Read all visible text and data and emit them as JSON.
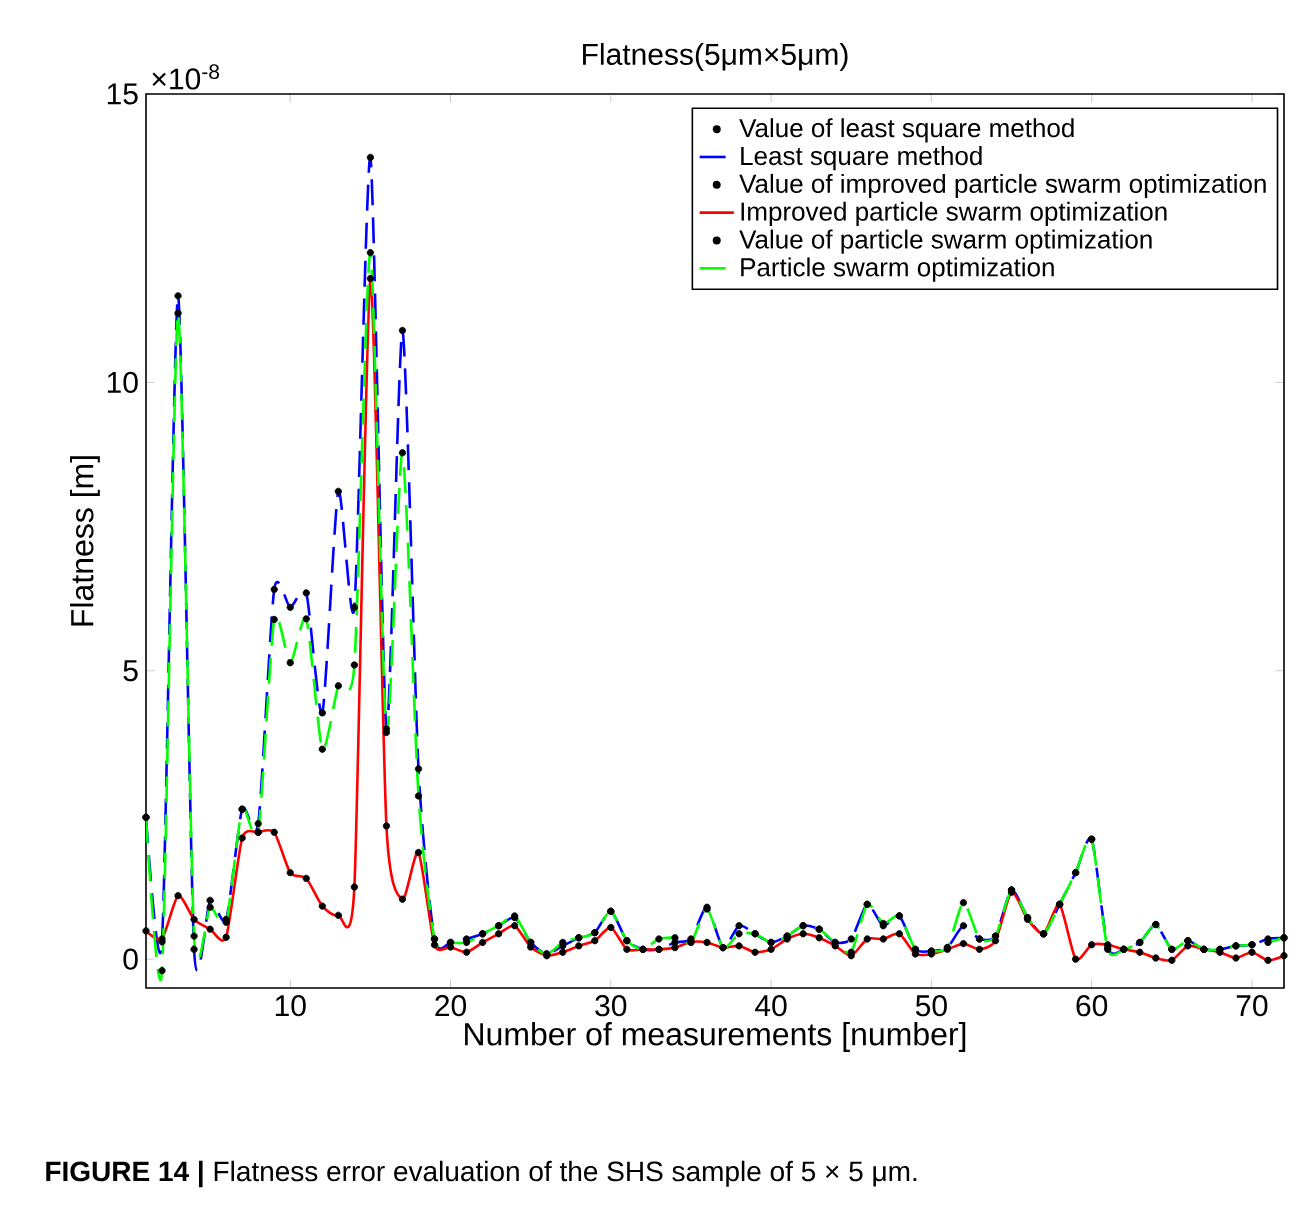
{
  "chart_data": {
    "type": "line",
    "title": "Flatness(5μm×5μm)",
    "xlabel": "Number of measurements [number]",
    "ylabel": "Flatness [m]",
    "annotations": [
      "×10$^{-8}$",
      "**FIGURE 14 |** Flatness error evaluation of the SHS sample of 5 × 5 μm."
    ],
    "x": [
      1,
      2,
      3,
      4,
      5,
      6,
      7,
      8,
      9,
      10,
      11,
      12,
      13,
      14,
      15,
      16,
      17,
      18,
      19,
      20,
      21,
      22,
      23,
      24,
      25,
      26,
      27,
      28,
      29,
      30,
      31,
      32,
      33,
      34,
      35,
      36,
      37,
      38,
      39,
      40,
      41,
      42,
      43,
      44,
      45,
      46,
      47,
      48,
      49,
      50,
      51,
      52,
      53,
      54,
      55,
      56,
      57,
      58,
      59,
      60,
      61,
      62,
      63,
      64,
      65,
      66,
      67,
      68,
      69,
      70,
      71,
      72
    ],
    "xlim": [
      1,
      72
    ],
    "ylim": [
      -0.5,
      15
    ],
    "xticks": [
      10,
      20,
      30,
      40,
      50,
      60,
      70
    ],
    "yticks": [
      0,
      5,
      10,
      15
    ],
    "legend": "top right",
    "grid": false,
    "series": [
      {
        "name": "Value of least square method",
        "type": "scatter",
        "marker": "circle",
        "color": "#000000",
        "values": [
          2.46,
          0.3,
          11.5,
          0.17,
          1.02,
          0.69,
          2.6,
          2.35,
          6.41,
          6.1,
          6.35,
          4.27,
          8.11,
          6.1,
          13.9,
          3.99,
          10.9,
          3.3,
          0.35,
          0.29,
          0.35,
          0.44,
          0.58,
          0.72,
          0.29,
          0.09,
          0.23,
          0.37,
          0.46,
          0.83,
          0.32,
          0.17,
          0.17,
          0.29,
          0.35,
          0.9,
          0.2,
          0.58,
          0.44,
          0.29,
          0.4,
          0.58,
          0.52,
          0.29,
          0.35,
          0.95,
          0.58,
          0.75,
          0.17,
          0.14,
          0.2,
          0.58,
          0.35,
          0.4,
          1.2,
          0.72,
          0.44,
          0.95,
          1.5,
          2.08,
          0.2,
          0.17,
          0.29,
          0.6,
          0.17,
          0.32,
          0.17,
          0.17,
          0.23,
          0.25,
          0.35,
          0.37
        ]
      },
      {
        "name": "Least square method",
        "type": "line",
        "line_style": "dashed",
        "color": "#0000ff",
        "values": [
          2.46,
          0.3,
          11.5,
          0.17,
          1.02,
          0.69,
          2.6,
          2.35,
          6.41,
          6.1,
          6.35,
          4.27,
          8.11,
          6.1,
          13.9,
          3.99,
          10.9,
          3.3,
          0.35,
          0.29,
          0.35,
          0.44,
          0.58,
          0.72,
          0.29,
          0.09,
          0.23,
          0.37,
          0.46,
          0.83,
          0.32,
          0.17,
          0.17,
          0.29,
          0.35,
          0.9,
          0.2,
          0.58,
          0.44,
          0.29,
          0.4,
          0.58,
          0.52,
          0.29,
          0.35,
          0.95,
          0.58,
          0.75,
          0.17,
          0.14,
          0.2,
          0.58,
          0.35,
          0.4,
          1.2,
          0.72,
          0.44,
          0.95,
          1.5,
          2.08,
          0.2,
          0.17,
          0.29,
          0.6,
          0.17,
          0.32,
          0.17,
          0.17,
          0.23,
          0.25,
          0.35,
          0.37
        ]
      },
      {
        "name": "Value of improved particle swarm optimization",
        "type": "scatter",
        "marker": "circle",
        "color": "#000000",
        "values": [
          0.49,
          0.35,
          1.1,
          0.69,
          0.52,
          0.38,
          2.1,
          2.2,
          2.2,
          1.5,
          1.4,
          0.92,
          0.76,
          1.25,
          11.8,
          2.31,
          1.04,
          1.85,
          0.25,
          0.21,
          0.12,
          0.29,
          0.44,
          0.58,
          0.21,
          0.06,
          0.12,
          0.23,
          0.32,
          0.55,
          0.17,
          0.17,
          0.17,
          0.2,
          0.3,
          0.29,
          0.2,
          0.23,
          0.12,
          0.17,
          0.35,
          0.44,
          0.37,
          0.23,
          0.06,
          0.35,
          0.35,
          0.44,
          0.09,
          0.09,
          0.17,
          0.27,
          0.17,
          0.32,
          1.16,
          0.69,
          0.44,
          0.95,
          0.0,
          0.25,
          0.25,
          0.17,
          0.12,
          0.02,
          -0.02,
          0.23,
          0.17,
          0.12,
          0.02,
          0.12,
          -0.02,
          0.06
        ]
      },
      {
        "name": "Improved particle swarm optimization",
        "type": "line",
        "line_style": "solid",
        "color": "#ff0000",
        "values": [
          0.49,
          0.35,
          1.1,
          0.69,
          0.52,
          0.38,
          2.1,
          2.2,
          2.2,
          1.5,
          1.4,
          0.92,
          0.76,
          1.25,
          11.8,
          2.31,
          1.04,
          1.85,
          0.25,
          0.21,
          0.12,
          0.29,
          0.44,
          0.58,
          0.21,
          0.06,
          0.12,
          0.23,
          0.32,
          0.55,
          0.17,
          0.17,
          0.17,
          0.2,
          0.3,
          0.29,
          0.2,
          0.23,
          0.12,
          0.17,
          0.35,
          0.44,
          0.37,
          0.23,
          0.06,
          0.35,
          0.35,
          0.44,
          0.09,
          0.09,
          0.17,
          0.27,
          0.17,
          0.32,
          1.16,
          0.69,
          0.44,
          0.95,
          0.0,
          0.25,
          0.25,
          0.17,
          0.12,
          0.02,
          -0.02,
          0.23,
          0.17,
          0.12,
          0.02,
          0.12,
          -0.02,
          0.06
        ]
      },
      {
        "name": "Value of particle swarm optimization",
        "type": "scatter",
        "marker": "circle",
        "color": "#000000",
        "values": [
          2.46,
          -0.2,
          11.2,
          0.4,
          0.9,
          0.64,
          2.6,
          2.2,
          5.89,
          5.14,
          5.9,
          3.64,
          4.74,
          5.1,
          12.25,
          3.93,
          8.78,
          2.83,
          0.35,
          0.29,
          0.29,
          0.44,
          0.58,
          0.75,
          0.29,
          0.09,
          0.29,
          0.37,
          0.46,
          0.83,
          0.32,
          0.17,
          0.35,
          0.37,
          0.29,
          0.87,
          0.2,
          0.44,
          0.44,
          0.29,
          0.4,
          0.58,
          0.52,
          0.29,
          0.12,
          0.95,
          0.62,
          0.75,
          0.17,
          0.14,
          0.2,
          0.98,
          0.35,
          0.4,
          1.2,
          0.72,
          0.44,
          0.95,
          1.5,
          2.08,
          0.17,
          0.17,
          0.29,
          0.6,
          0.17,
          0.32,
          0.17,
          0.17,
          0.23,
          0.25,
          0.29,
          0.37
        ]
      },
      {
        "name": "Particle swarm optimization",
        "type": "line",
        "line_style": "dashed",
        "color": "#00ff00",
        "values": [
          2.46,
          -0.2,
          11.2,
          0.4,
          0.9,
          0.64,
          2.6,
          2.2,
          5.89,
          5.14,
          5.9,
          3.64,
          4.74,
          5.1,
          12.25,
          3.93,
          8.78,
          2.83,
          0.35,
          0.29,
          0.29,
          0.44,
          0.58,
          0.75,
          0.29,
          0.09,
          0.29,
          0.37,
          0.46,
          0.83,
          0.32,
          0.17,
          0.35,
          0.37,
          0.29,
          0.87,
          0.2,
          0.44,
          0.44,
          0.29,
          0.4,
          0.58,
          0.52,
          0.29,
          0.12,
          0.95,
          0.62,
          0.75,
          0.17,
          0.14,
          0.2,
          0.98,
          0.35,
          0.4,
          1.2,
          0.72,
          0.44,
          0.95,
          1.5,
          2.08,
          0.17,
          0.17,
          0.29,
          0.6,
          0.17,
          0.32,
          0.17,
          0.17,
          0.23,
          0.25,
          0.29,
          0.37
        ]
      }
    ]
  }
}
